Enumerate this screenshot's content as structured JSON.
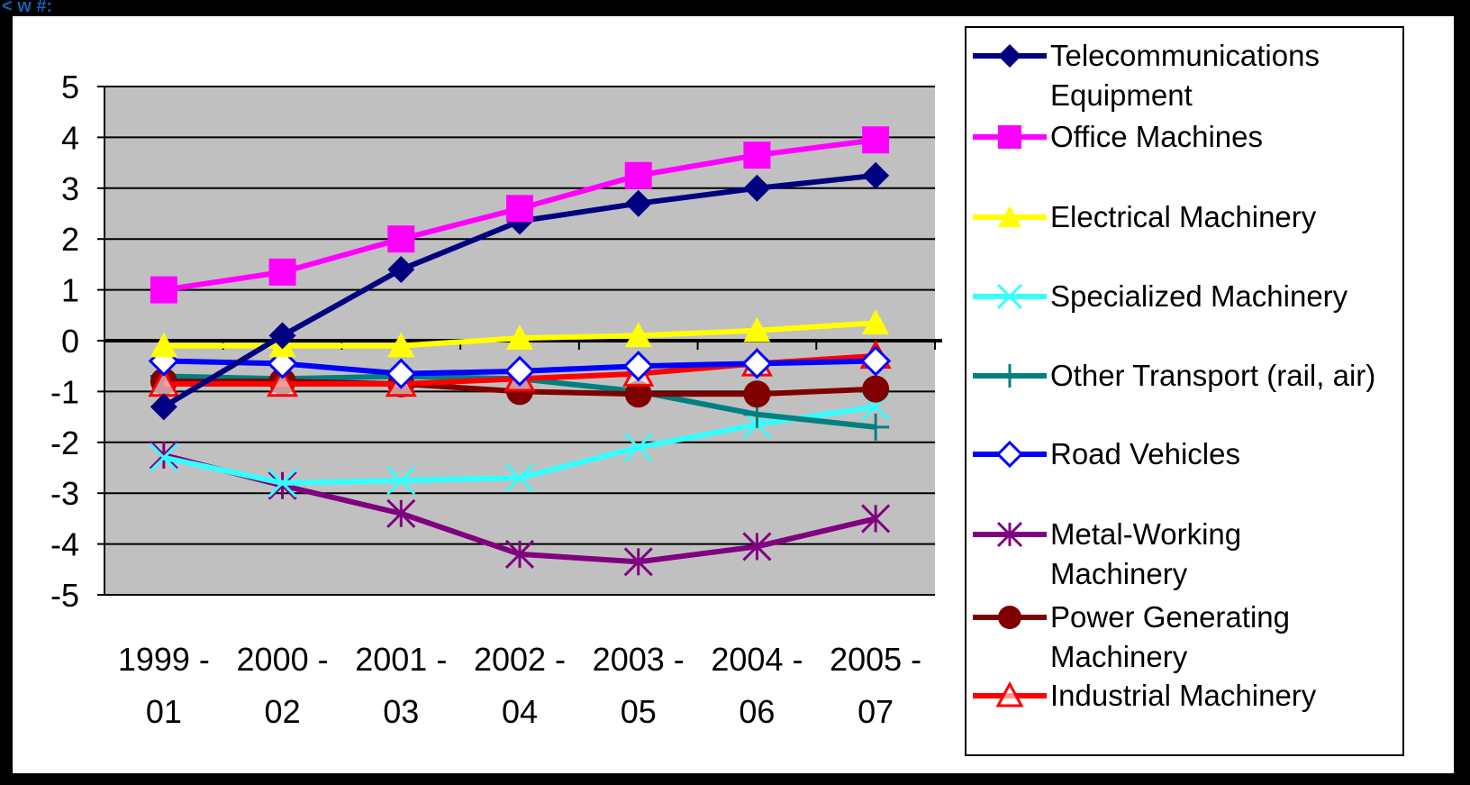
{
  "header": {
    "fragment": "< w #:"
  },
  "chart_data": {
    "type": "line",
    "title": "",
    "xlabel": "",
    "ylabel": "",
    "categories": [
      "1999 -\n01",
      "2000 -\n02",
      "2001 -\n03",
      "2002 -\n04",
      "2003 -\n05",
      "2004 -\n06",
      "2005 -\n07"
    ],
    "ylim": [
      -5,
      5
    ],
    "yticks": [
      5,
      4,
      3,
      2,
      1,
      0,
      -1,
      -2,
      -3,
      -4,
      -5
    ],
    "grid": "horizontal",
    "plot_background": "#c0c0c0",
    "legend_position": "right",
    "series": [
      {
        "name": "Telecommunications\nEquipment",
        "color": "#000080",
        "marker": "diamond",
        "values": [
          -1.3,
          0.1,
          1.4,
          2.35,
          2.7,
          3.0,
          3.25
        ]
      },
      {
        "name": "Office Machines",
        "color": "#ff00ff",
        "marker": "square",
        "values": [
          1.0,
          1.35,
          2.0,
          2.6,
          3.25,
          3.65,
          3.95
        ]
      },
      {
        "name": "Electrical Machinery",
        "color": "#ffff00",
        "marker": "triangle",
        "values": [
          -0.1,
          -0.1,
          -0.1,
          0.05,
          0.1,
          0.2,
          0.35
        ]
      },
      {
        "name": "Specialized Machinery",
        "color": "#33ffff",
        "marker": "x",
        "values": [
          -2.3,
          -2.8,
          -2.75,
          -2.7,
          -2.1,
          -1.65,
          -1.3
        ]
      },
      {
        "name": "Other Transport (rail, air)",
        "color": "#008080",
        "marker": "plus",
        "values": [
          -0.7,
          -0.75,
          -0.7,
          -0.75,
          -1.0,
          -1.45,
          -1.7
        ]
      },
      {
        "name": "Road Vehicles",
        "color": "#0000ff",
        "marker": "diamond-open",
        "values": [
          -0.4,
          -0.45,
          -0.65,
          -0.6,
          -0.5,
          -0.45,
          -0.4
        ]
      },
      {
        "name": "Metal-Working\nMachinery",
        "color": "#800080",
        "marker": "star",
        "values": [
          -2.25,
          -2.85,
          -3.4,
          -4.2,
          -4.35,
          -4.05,
          -3.5
        ]
      },
      {
        "name": "Power Generating\nMachinery",
        "color": "#800000",
        "marker": "circle",
        "values": [
          -0.8,
          -0.8,
          -0.85,
          -1.0,
          -1.05,
          -1.05,
          -0.95
        ]
      },
      {
        "name": "Industrial Machinery",
        "color": "#ff0000",
        "marker": "triangle-open",
        "values": [
          -0.85,
          -0.85,
          -0.85,
          -0.75,
          -0.65,
          -0.45,
          -0.3
        ]
      }
    ]
  }
}
